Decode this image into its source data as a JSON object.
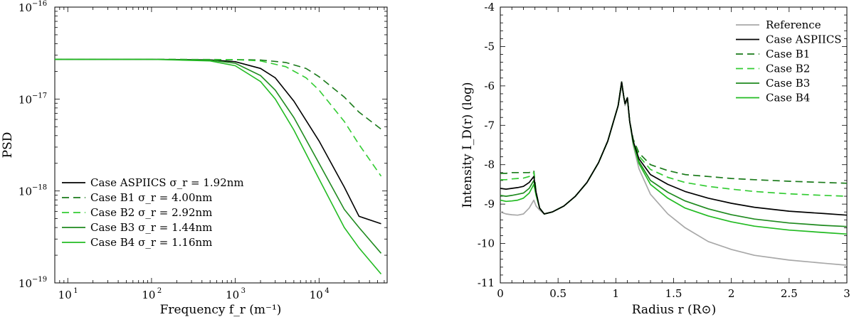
{
  "chart_data": [
    {
      "type": "line",
      "xscale": "log",
      "yscale": "log",
      "xlabel": "Frequency f_r (m⁻¹)",
      "ylabel": "PSD",
      "xlim": [
        7,
        65000
      ],
      "ylim": [
        1e-19,
        1e-16
      ],
      "grid": false,
      "legend_position": "bottom-left",
      "x_ticks": [
        {
          "value": 10,
          "mant": "10",
          "exp": "1"
        },
        {
          "value": 100,
          "mant": "10",
          "exp": "2"
        },
        {
          "value": 1000,
          "mant": "10",
          "exp": "3"
        },
        {
          "value": 10000,
          "mant": "10",
          "exp": "4"
        }
      ],
      "y_ticks": [
        {
          "value": 1e-19,
          "mant": "10",
          "exp": "−19"
        },
        {
          "value": 1e-18,
          "mant": "10",
          "exp": "−18"
        },
        {
          "value": 1e-17,
          "mant": "10",
          "exp": "−17"
        },
        {
          "value": 1e-16,
          "mant": "10",
          "exp": "−16"
        }
      ],
      "series": [
        {
          "name": "Case ASPIICS σ_r = 1.92nm",
          "color": "#000000",
          "dash": "solid",
          "x": [
            7,
            100,
            500,
            1000,
            2000,
            3000,
            5000,
            10000,
            20000,
            30000,
            55000
          ],
          "y": [
            2.7e-17,
            2.7e-17,
            2.67e-17,
            2.55e-17,
            2.15e-17,
            1.7e-17,
            9.5e-18,
            3.5e-18,
            1.1e-18,
            5.3e-19,
            4.4e-19
          ]
        },
        {
          "name": "Case B1 σ_r = 4.00nm",
          "color": "#1a7a1a",
          "dash": "dashed",
          "x": [
            7,
            100,
            1000,
            2000,
            4000,
            7000,
            10000,
            20000,
            30000,
            55000
          ],
          "y": [
            2.7e-17,
            2.7e-17,
            2.69e-17,
            2.66e-17,
            2.5e-17,
            2.15e-17,
            1.75e-17,
            1.05e-17,
            7.2e-18,
            4.7e-18
          ]
        },
        {
          "name": "Case B2 σ_r = 2.92nm",
          "color": "#33cc33",
          "dash": "dashed",
          "x": [
            7,
            100,
            1000,
            2000,
            4000,
            7000,
            10000,
            20000,
            30000,
            55000
          ],
          "y": [
            2.7e-17,
            2.7e-17,
            2.68e-17,
            2.6e-17,
            2.25e-17,
            1.7e-17,
            1.25e-17,
            5.7e-18,
            3.2e-18,
            1.45e-18
          ]
        },
        {
          "name": "Case B3 σ_r = 1.44nm",
          "color": "#1f8a1f",
          "dash": "solid",
          "x": [
            7,
            100,
            500,
            1000,
            2000,
            3000,
            5000,
            10000,
            20000,
            30000,
            55000
          ],
          "y": [
            2.7e-17,
            2.7e-17,
            2.65e-17,
            2.45e-17,
            1.8e-17,
            1.25e-17,
            6.3e-18,
            2e-18,
            6.3e-19,
            4e-19,
            2.1e-19
          ]
        },
        {
          "name": "Case B4 σ_r = 1.16nm",
          "color": "#22bb22",
          "dash": "solid",
          "x": [
            7,
            100,
            500,
            1000,
            2000,
            3000,
            5000,
            10000,
            20000,
            30000,
            55000
          ],
          "y": [
            2.7e-17,
            2.7e-17,
            2.6e-17,
            2.3e-17,
            1.55e-17,
            1e-17,
            4.6e-18,
            1.35e-18,
            4e-19,
            2.4e-19,
            1.25e-19
          ]
        }
      ]
    },
    {
      "type": "line",
      "xlabel": "Radius r (R⊙)",
      "ylabel": "Intensity I_D(r) (log)",
      "xlim": [
        0,
        3
      ],
      "ylim": [
        -11,
        -4
      ],
      "grid": false,
      "legend_position": "top-right",
      "x_ticks": [
        "0",
        "0.5",
        "1",
        "1.5",
        "2",
        "2.5",
        "3"
      ],
      "y_ticks": [
        "-11",
        "-10",
        "-9",
        "-8",
        "-7",
        "-6",
        "-5",
        "-4"
      ],
      "series": [
        {
          "name": "Reference",
          "color": "#a8a8a8",
          "dash": "solid",
          "x": [
            0,
            0.05,
            0.1,
            0.15,
            0.2,
            0.25,
            0.29,
            0.31,
            0.34,
            0.38,
            0.45,
            0.55,
            0.65,
            0.75,
            0.85,
            0.93,
            0.98,
            1.02,
            1.05,
            1.07,
            1.08,
            1.1,
            1.12,
            1.15,
            1.2,
            1.3,
            1.45,
            1.6,
            1.8,
            2.0,
            2.2,
            2.5,
            2.8,
            3.0
          ],
          "y": [
            -9.2,
            -9.25,
            -9.27,
            -9.28,
            -9.25,
            -9.1,
            -8.9,
            -9.05,
            -9.15,
            -9.25,
            -9.2,
            -9.05,
            -8.8,
            -8.45,
            -7.95,
            -7.4,
            -6.9,
            -6.5,
            -6.0,
            -6.3,
            -6.5,
            -6.35,
            -6.9,
            -7.5,
            -8.1,
            -8.75,
            -9.25,
            -9.6,
            -9.95,
            -10.15,
            -10.3,
            -10.42,
            -10.5,
            -10.55
          ]
        },
        {
          "name": "Case ASPIICS",
          "color": "#000000",
          "dash": "solid",
          "x": [
            0,
            0.05,
            0.1,
            0.15,
            0.2,
            0.25,
            0.29,
            0.31,
            0.34,
            0.38,
            0.45,
            0.55,
            0.65,
            0.75,
            0.85,
            0.93,
            0.98,
            1.02,
            1.05,
            1.07,
            1.08,
            1.1,
            1.12,
            1.15,
            1.2,
            1.3,
            1.45,
            1.6,
            1.8,
            2.0,
            2.2,
            2.5,
            2.8,
            3.0
          ],
          "y": [
            -8.6,
            -8.62,
            -8.6,
            -8.58,
            -8.55,
            -8.45,
            -8.3,
            -8.7,
            -9.1,
            -9.25,
            -9.2,
            -9.05,
            -8.8,
            -8.45,
            -7.95,
            -7.4,
            -6.9,
            -6.5,
            -5.9,
            -6.3,
            -6.45,
            -6.3,
            -6.9,
            -7.4,
            -7.85,
            -8.25,
            -8.5,
            -8.68,
            -8.85,
            -8.98,
            -9.08,
            -9.18,
            -9.24,
            -9.28
          ]
        },
        {
          "name": "Case B1",
          "color": "#1a7a1a",
          "dash": "dashed",
          "x": [
            0,
            0.05,
            0.1,
            0.15,
            0.2,
            0.25,
            0.29,
            0.31,
            0.34,
            0.38,
            0.45,
            0.55,
            0.65,
            0.75,
            0.85,
            0.93,
            0.98,
            1.02,
            1.05,
            1.07,
            1.08,
            1.1,
            1.12,
            1.15,
            1.2,
            1.3,
            1.45,
            1.6,
            1.8,
            2.0,
            2.2,
            2.5,
            2.8,
            3.0
          ],
          "y": [
            -8.22,
            -8.22,
            -8.2,
            -8.2,
            -8.2,
            -8.2,
            -8.15,
            -8.7,
            -9.1,
            -9.25,
            -9.2,
            -9.05,
            -8.8,
            -8.45,
            -7.95,
            -7.4,
            -6.9,
            -6.5,
            -5.9,
            -6.3,
            -6.45,
            -6.3,
            -6.9,
            -7.35,
            -7.7,
            -8.0,
            -8.15,
            -8.25,
            -8.3,
            -8.35,
            -8.38,
            -8.42,
            -8.45,
            -8.47
          ]
        },
        {
          "name": "Case B2",
          "color": "#33cc33",
          "dash": "dashed",
          "x": [
            0,
            0.05,
            0.1,
            0.15,
            0.2,
            0.25,
            0.29,
            0.31,
            0.34,
            0.38,
            0.45,
            0.55,
            0.65,
            0.75,
            0.85,
            0.93,
            0.98,
            1.02,
            1.05,
            1.07,
            1.08,
            1.1,
            1.12,
            1.15,
            1.2,
            1.3,
            1.45,
            1.6,
            1.8,
            2.0,
            2.2,
            2.5,
            2.8,
            3.0
          ],
          "y": [
            -8.38,
            -8.38,
            -8.36,
            -8.35,
            -8.34,
            -8.3,
            -8.2,
            -8.7,
            -9.1,
            -9.25,
            -9.2,
            -9.05,
            -8.8,
            -8.45,
            -7.95,
            -7.4,
            -6.9,
            -6.5,
            -5.9,
            -6.3,
            -6.45,
            -6.3,
            -6.9,
            -7.38,
            -7.78,
            -8.12,
            -8.32,
            -8.45,
            -8.55,
            -8.62,
            -8.68,
            -8.74,
            -8.78,
            -8.8
          ]
        },
        {
          "name": "Case B3",
          "color": "#1f8a1f",
          "dash": "solid",
          "x": [
            0,
            0.05,
            0.1,
            0.15,
            0.2,
            0.25,
            0.29,
            0.31,
            0.34,
            0.38,
            0.45,
            0.55,
            0.65,
            0.75,
            0.85,
            0.93,
            0.98,
            1.02,
            1.05,
            1.07,
            1.08,
            1.1,
            1.12,
            1.15,
            1.2,
            1.3,
            1.45,
            1.6,
            1.8,
            2.0,
            2.2,
            2.5,
            2.8,
            3.0
          ],
          "y": [
            -8.78,
            -8.8,
            -8.78,
            -8.75,
            -8.72,
            -8.6,
            -8.4,
            -8.75,
            -9.1,
            -9.25,
            -9.2,
            -9.05,
            -8.8,
            -8.45,
            -7.95,
            -7.4,
            -6.9,
            -6.5,
            -5.9,
            -6.3,
            -6.45,
            -6.3,
            -6.9,
            -7.42,
            -7.92,
            -8.4,
            -8.7,
            -8.92,
            -9.12,
            -9.27,
            -9.38,
            -9.48,
            -9.54,
            -9.57
          ]
        },
        {
          "name": "Case B4",
          "color": "#22bb22",
          "dash": "solid",
          "x": [
            0,
            0.05,
            0.1,
            0.15,
            0.2,
            0.25,
            0.29,
            0.31,
            0.34,
            0.38,
            0.45,
            0.55,
            0.65,
            0.75,
            0.85,
            0.93,
            0.98,
            1.02,
            1.05,
            1.07,
            1.08,
            1.1,
            1.12,
            1.15,
            1.2,
            1.3,
            1.45,
            1.6,
            1.8,
            2.0,
            2.2,
            2.5,
            2.8,
            3.0
          ],
          "y": [
            -8.9,
            -8.93,
            -8.92,
            -8.9,
            -8.85,
            -8.72,
            -8.5,
            -8.78,
            -9.1,
            -9.25,
            -9.2,
            -9.05,
            -8.8,
            -8.45,
            -7.95,
            -7.4,
            -6.9,
            -6.5,
            -5.9,
            -6.3,
            -6.45,
            -6.3,
            -6.9,
            -7.45,
            -7.97,
            -8.5,
            -8.85,
            -9.1,
            -9.3,
            -9.45,
            -9.56,
            -9.66,
            -9.72,
            -9.76
          ]
        }
      ]
    }
  ]
}
